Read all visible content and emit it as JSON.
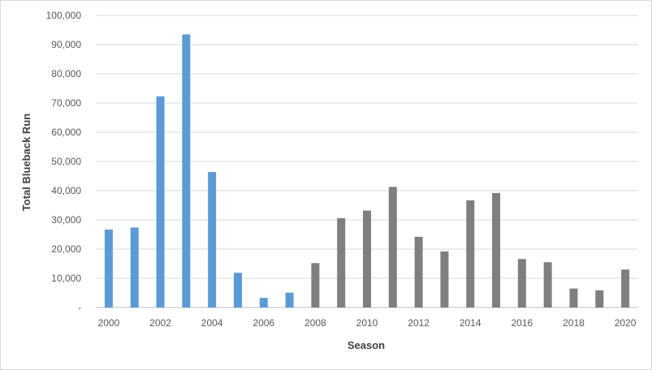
{
  "chart_data": {
    "type": "bar",
    "xlabel": "Season",
    "ylabel": "Total Blueback  Run",
    "ylim": [
      0,
      100000
    ],
    "y_ticks": [
      0,
      10000,
      20000,
      30000,
      40000,
      50000,
      60000,
      70000,
      80000,
      90000,
      100000
    ],
    "y_tick_labels": [
      "-",
      "10,000",
      "20,000",
      "30,000",
      "40,000",
      "50,000",
      "60,000",
      "70,000",
      "80,000",
      "90,000",
      "100,000"
    ],
    "categories": [
      2000,
      2001,
      2002,
      2003,
      2004,
      2005,
      2006,
      2007,
      2008,
      2009,
      2010,
      2011,
      2012,
      2013,
      2014,
      2015,
      2016,
      2017,
      2018,
      2019,
      2020
    ],
    "x_tick_labels": [
      "2000",
      "",
      "2002",
      "",
      "2004",
      "",
      "2006",
      "",
      "2008",
      "",
      "2010",
      "",
      "2012",
      "",
      "2014",
      "",
      "2016",
      "",
      "2018",
      "",
      "2020"
    ],
    "values": [
      26700,
      27400,
      72300,
      93500,
      46400,
      11900,
      3300,
      5100,
      15200,
      30600,
      33200,
      41300,
      24200,
      19200,
      36700,
      39200,
      16600,
      15500,
      6500,
      5900,
      13000
    ],
    "bar_colors": [
      "#5b9bd5",
      "#5b9bd5",
      "#5b9bd5",
      "#5b9bd5",
      "#5b9bd5",
      "#5b9bd5",
      "#5b9bd5",
      "#5b9bd5",
      "#7f7f7f",
      "#7f7f7f",
      "#7f7f7f",
      "#7f7f7f",
      "#7f7f7f",
      "#7f7f7f",
      "#7f7f7f",
      "#7f7f7f",
      "#7f7f7f",
      "#7f7f7f",
      "#7f7f7f",
      "#7f7f7f",
      "#7f7f7f"
    ],
    "grid": true,
    "legend": "none",
    "colors": {
      "gridline": "#d9d9d9",
      "axis": "#bfbfbf"
    }
  }
}
